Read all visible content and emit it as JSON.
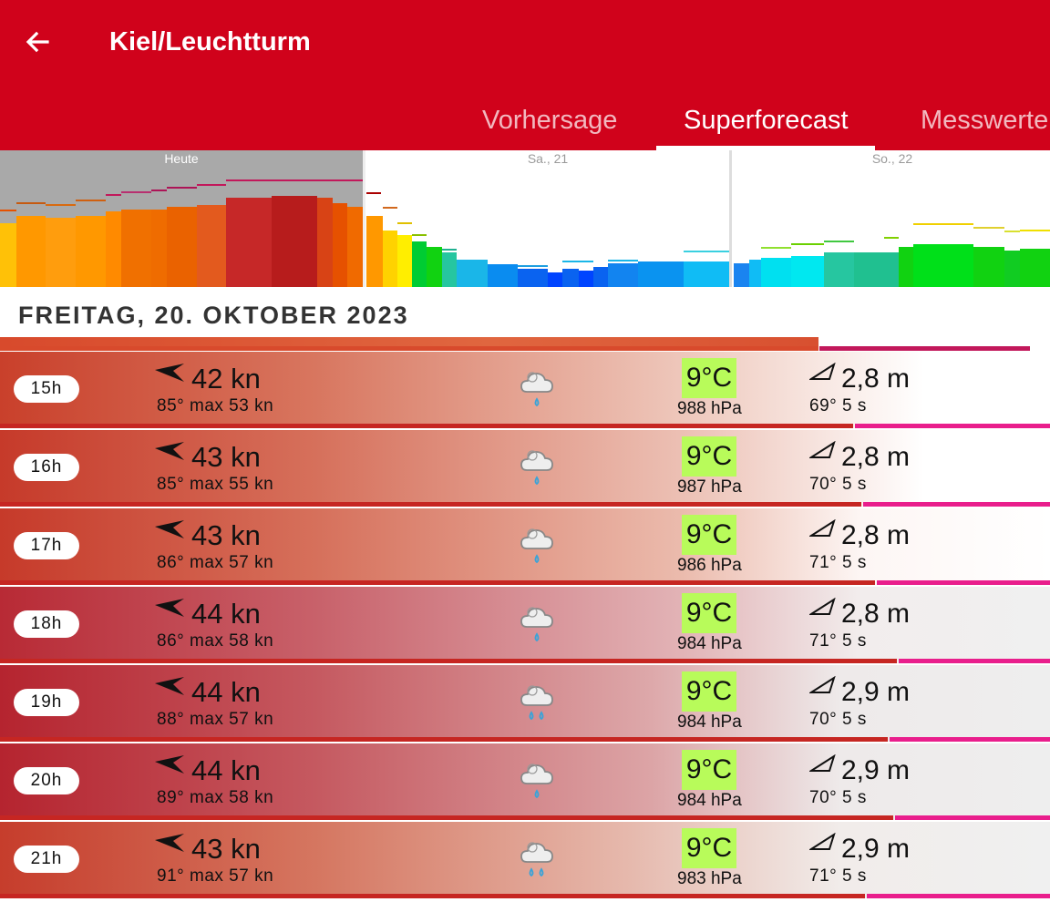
{
  "header": {
    "title": "Kiel/Leuchtturm",
    "tabs": [
      "Vorhersage",
      "Superforecast",
      "Messwerte"
    ],
    "active_tab": "Superforecast"
  },
  "chart": {
    "day_labels": [
      "Heute",
      "Sa., 21",
      "So., 22"
    ]
  },
  "date_heading": "FREITAG, 20. OKTOBER 2023",
  "rows": [
    {
      "hour": "15h",
      "speed": "42 kn",
      "dir_max": "85°  max 53 kn",
      "temp": "9°C",
      "pressure": "988 hPa",
      "wave_h": "2,8 m",
      "wave_dir_period": "69°  5 s",
      "rain": "1"
    },
    {
      "hour": "16h",
      "speed": "43 kn",
      "dir_max": "85°  max 55 kn",
      "temp": "9°C",
      "pressure": "987 hPa",
      "wave_h": "2,8 m",
      "wave_dir_period": "70°  5 s",
      "rain": "1"
    },
    {
      "hour": "17h",
      "speed": "43 kn",
      "dir_max": "86°  max 57 kn",
      "temp": "9°C",
      "pressure": "986 hPa",
      "wave_h": "2,8 m",
      "wave_dir_period": "71°  5 s",
      "rain": "1"
    },
    {
      "hour": "18h",
      "speed": "44 kn",
      "dir_max": "86°  max 58 kn",
      "temp": "9°C",
      "pressure": "984 hPa",
      "wave_h": "2,8 m",
      "wave_dir_period": "71°  5 s",
      "rain": "1"
    },
    {
      "hour": "19h",
      "speed": "44 kn",
      "dir_max": "88°  max 57 kn",
      "temp": "9°C",
      "pressure": "984 hPa",
      "wave_h": "2,9 m",
      "wave_dir_period": "70°  5 s",
      "rain": "2"
    },
    {
      "hour": "20h",
      "speed": "44 kn",
      "dir_max": "89°  max 58 kn",
      "temp": "9°C",
      "pressure": "984 hPa",
      "wave_h": "2,9 m",
      "wave_dir_period": "70°  5 s",
      "rain": "1"
    },
    {
      "hour": "21h",
      "speed": "43 kn",
      "dir_max": "91°  max 57 kn",
      "temp": "9°C",
      "pressure": "983 hPa",
      "wave_h": "2,9 m",
      "wave_dir_period": "71°  5 s",
      "rain": "2"
    }
  ],
  "colors": {
    "brand": "#d0021b",
    "temp_bg": "#b8fb5a",
    "wave_line": "#e91e8c",
    "wind_line": "#c62622"
  }
}
